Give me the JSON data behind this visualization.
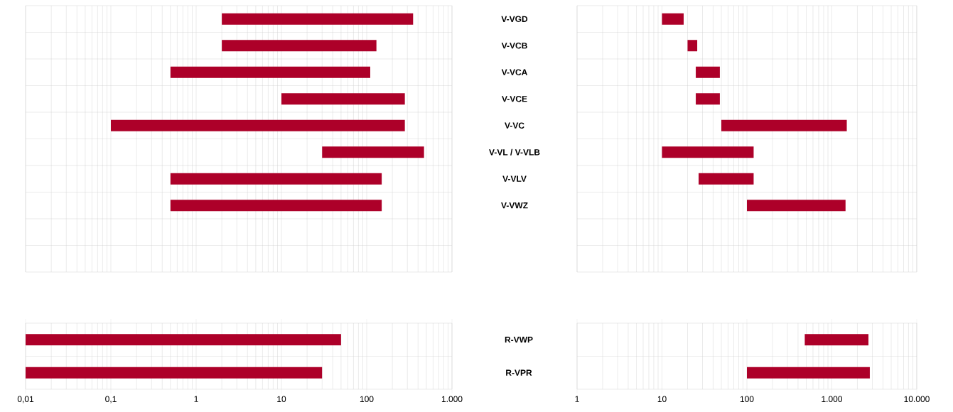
{
  "chart_data": [
    {
      "type": "bar",
      "orientation": "horizontal",
      "log": "x",
      "grid": true,
      "tick_labels": "y",
      "color": "#ad0029",
      "categories": [
        "V-VGD",
        "V-VCB",
        "V-VCA",
        "V-VCE",
        "V-VC",
        "V-VL / V-VLB",
        "V-VLV",
        "V-VWZ",
        null,
        null
      ],
      "base": [
        2,
        2,
        0.5,
        10,
        0.1,
        30,
        0.5,
        0.5,
        null,
        null
      ],
      "values": [
        348,
        128,
        109.5,
        270,
        279.9,
        440,
        149.5,
        149.5,
        null,
        null
      ],
      "xlim": [
        0.01,
        1000
      ],
      "xticks": [
        {
          "value": 0.01,
          "label": null
        },
        {
          "value": 0.1,
          "label": null
        },
        {
          "value": 1,
          "label": null
        },
        {
          "value": 10,
          "label": null
        },
        {
          "value": 100,
          "label": null
        },
        {
          "value": 1000,
          "label": null
        }
      ]
    },
    {
      "type": "bar",
      "orientation": "horizontal",
      "log": "x",
      "grid": true,
      "tick_labels": false,
      "color": "#ad0029",
      "categories": [
        null,
        null,
        null,
        null,
        null,
        null,
        null,
        null,
        null,
        null
      ],
      "base": [
        10,
        20,
        25,
        25,
        50,
        10,
        27,
        100,
        null,
        null
      ],
      "values": [
        8,
        6,
        23,
        23,
        1450,
        110,
        93,
        1350,
        null,
        null
      ],
      "xlim": [
        1,
        10000
      ],
      "xticks": [
        {
          "value": 1,
          "label": null
        },
        {
          "value": 10,
          "label": null
        },
        {
          "value": 100,
          "label": null
        },
        {
          "value": 1000,
          "label": null
        },
        {
          "value": 10000,
          "label": null
        }
      ]
    },
    {
      "type": "bar",
      "orientation": "horizontal",
      "log": "x",
      "grid": true,
      "color": "#ad0029",
      "categories": [
        "R-VWP",
        "R-VPR"
      ],
      "base": [
        0.01,
        0.01
      ],
      "values": [
        49.99,
        29.99
      ],
      "xlim": [
        0.01,
        1000
      ],
      "xticks": [
        {
          "value": 0.01,
          "label": "0,01"
        },
        {
          "value": 0.1,
          "label": "0,1"
        },
        1,
        10,
        100,
        {
          "value": 1000,
          "label": "1.000"
        }
      ]
    },
    {
      "type": "bar",
      "orientation": "horizontal",
      "log": "x",
      "grid": true,
      "tick_labels": "x",
      "color": "#ad0029",
      "categories": [
        null,
        null
      ],
      "base": [
        480,
        100
      ],
      "values": [
        2220,
        2700
      ],
      "xlim": [
        1,
        10000
      ],
      "xticks": [
        1,
        10,
        100,
        {
          "value": 1000,
          "label": "1.000"
        },
        {
          "value": 10000,
          "label": "10.000"
        }
      ]
    }
  ]
}
